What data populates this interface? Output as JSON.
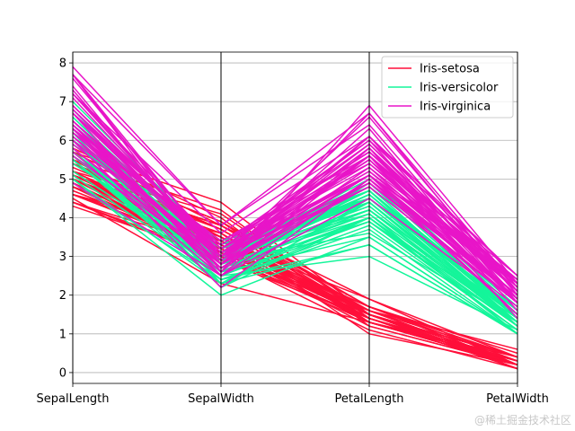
{
  "chart_data": {
    "type": "parallel_coordinates",
    "title": "",
    "columns": [
      "SepalLength",
      "SepalWidth",
      "PetalLength",
      "PetalWidth"
    ],
    "ylim": [
      -0.28,
      8.28
    ],
    "yticks": [
      0,
      1,
      2,
      3,
      4,
      5,
      6,
      7,
      8
    ],
    "grid": true,
    "legend_position": "top-right",
    "series": [
      {
        "name": "Iris-setosa",
        "color": "#ff0f3a",
        "rows": [
          [
            5.1,
            3.5,
            1.4,
            0.2
          ],
          [
            4.9,
            3.0,
            1.4,
            0.2
          ],
          [
            4.7,
            3.2,
            1.3,
            0.2
          ],
          [
            4.6,
            3.1,
            1.5,
            0.2
          ],
          [
            5.0,
            3.6,
            1.4,
            0.2
          ],
          [
            5.4,
            3.9,
            1.7,
            0.4
          ],
          [
            4.6,
            3.4,
            1.4,
            0.3
          ],
          [
            5.0,
            3.4,
            1.5,
            0.2
          ],
          [
            4.4,
            2.9,
            1.4,
            0.2
          ],
          [
            4.9,
            3.1,
            1.5,
            0.1
          ],
          [
            5.4,
            3.7,
            1.5,
            0.2
          ],
          [
            4.8,
            3.4,
            1.6,
            0.2
          ],
          [
            4.8,
            3.0,
            1.4,
            0.1
          ],
          [
            4.3,
            3.0,
            1.1,
            0.1
          ],
          [
            5.8,
            4.0,
            1.2,
            0.2
          ],
          [
            5.7,
            4.4,
            1.5,
            0.4
          ],
          [
            5.4,
            3.9,
            1.3,
            0.4
          ],
          [
            5.1,
            3.5,
            1.4,
            0.3
          ],
          [
            5.7,
            3.8,
            1.7,
            0.3
          ],
          [
            5.1,
            3.8,
            1.5,
            0.3
          ],
          [
            5.4,
            3.4,
            1.7,
            0.2
          ],
          [
            5.1,
            3.7,
            1.5,
            0.4
          ],
          [
            4.6,
            3.6,
            1.0,
            0.2
          ],
          [
            5.1,
            3.3,
            1.7,
            0.5
          ],
          [
            4.8,
            3.4,
            1.9,
            0.2
          ],
          [
            5.0,
            3.0,
            1.6,
            0.2
          ],
          [
            5.0,
            3.4,
            1.6,
            0.4
          ],
          [
            5.2,
            3.5,
            1.5,
            0.2
          ],
          [
            5.2,
            3.4,
            1.4,
            0.2
          ],
          [
            4.7,
            3.2,
            1.6,
            0.2
          ],
          [
            4.8,
            3.1,
            1.6,
            0.2
          ],
          [
            5.4,
            3.4,
            1.5,
            0.4
          ],
          [
            5.2,
            4.1,
            1.5,
            0.1
          ],
          [
            5.5,
            4.2,
            1.4,
            0.2
          ],
          [
            4.9,
            3.1,
            1.5,
            0.1
          ],
          [
            5.0,
            3.2,
            1.2,
            0.2
          ],
          [
            5.5,
            3.5,
            1.3,
            0.2
          ],
          [
            4.9,
            3.1,
            1.5,
            0.1
          ],
          [
            4.4,
            3.0,
            1.3,
            0.2
          ],
          [
            5.1,
            3.4,
            1.5,
            0.2
          ],
          [
            5.0,
            3.5,
            1.3,
            0.3
          ],
          [
            4.5,
            2.3,
            1.3,
            0.3
          ],
          [
            4.4,
            3.2,
            1.3,
            0.2
          ],
          [
            5.0,
            3.5,
            1.6,
            0.6
          ],
          [
            5.1,
            3.8,
            1.9,
            0.4
          ],
          [
            4.8,
            3.0,
            1.4,
            0.3
          ],
          [
            5.1,
            3.8,
            1.6,
            0.2
          ],
          [
            4.6,
            3.2,
            1.4,
            0.2
          ],
          [
            5.3,
            3.7,
            1.5,
            0.2
          ],
          [
            5.0,
            3.3,
            1.4,
            0.2
          ]
        ]
      },
      {
        "name": "Iris-versicolor",
        "color": "#14f59a",
        "rows": [
          [
            7.0,
            3.2,
            4.7,
            1.4
          ],
          [
            6.4,
            3.2,
            4.5,
            1.5
          ],
          [
            6.9,
            3.1,
            4.9,
            1.5
          ],
          [
            5.5,
            2.3,
            4.0,
            1.3
          ],
          [
            6.5,
            2.8,
            4.6,
            1.5
          ],
          [
            5.7,
            2.8,
            4.5,
            1.3
          ],
          [
            6.3,
            3.3,
            4.7,
            1.6
          ],
          [
            4.9,
            2.4,
            3.3,
            1.0
          ],
          [
            6.6,
            2.9,
            4.6,
            1.3
          ],
          [
            5.2,
            2.7,
            3.9,
            1.4
          ],
          [
            5.0,
            2.0,
            3.5,
            1.0
          ],
          [
            5.9,
            3.0,
            4.2,
            1.5
          ],
          [
            6.0,
            2.2,
            4.0,
            1.0
          ],
          [
            6.1,
            2.9,
            4.7,
            1.4
          ],
          [
            5.6,
            2.9,
            3.6,
            1.3
          ],
          [
            6.7,
            3.1,
            4.4,
            1.4
          ],
          [
            5.6,
            3.0,
            4.5,
            1.5
          ],
          [
            5.8,
            2.7,
            4.1,
            1.0
          ],
          [
            6.2,
            2.2,
            4.5,
            1.5
          ],
          [
            5.6,
            2.5,
            3.9,
            1.1
          ],
          [
            5.9,
            3.2,
            4.8,
            1.8
          ],
          [
            6.1,
            2.8,
            4.0,
            1.3
          ],
          [
            6.3,
            2.5,
            4.9,
            1.5
          ],
          [
            6.1,
            2.8,
            4.7,
            1.2
          ],
          [
            6.4,
            2.9,
            4.3,
            1.3
          ],
          [
            6.6,
            3.0,
            4.4,
            1.4
          ],
          [
            6.8,
            2.8,
            4.8,
            1.4
          ],
          [
            6.7,
            3.0,
            5.0,
            1.7
          ],
          [
            6.0,
            2.9,
            4.5,
            1.5
          ],
          [
            5.7,
            2.6,
            3.5,
            1.0
          ],
          [
            5.5,
            2.4,
            3.8,
            1.1
          ],
          [
            5.5,
            2.4,
            3.7,
            1.0
          ],
          [
            5.8,
            2.7,
            3.9,
            1.2
          ],
          [
            6.0,
            2.7,
            5.1,
            1.6
          ],
          [
            5.4,
            3.0,
            4.5,
            1.5
          ],
          [
            6.0,
            3.4,
            4.5,
            1.6
          ],
          [
            6.7,
            3.1,
            4.7,
            1.5
          ],
          [
            6.3,
            2.3,
            4.4,
            1.3
          ],
          [
            5.6,
            3.0,
            4.1,
            1.3
          ],
          [
            5.5,
            2.5,
            4.0,
            1.3
          ],
          [
            5.5,
            2.6,
            4.4,
            1.2
          ],
          [
            6.1,
            3.0,
            4.6,
            1.4
          ],
          [
            5.8,
            2.6,
            4.0,
            1.2
          ],
          [
            5.0,
            2.3,
            3.3,
            1.0
          ],
          [
            5.6,
            2.7,
            4.2,
            1.3
          ],
          [
            5.7,
            3.0,
            4.2,
            1.2
          ],
          [
            5.7,
            2.9,
            4.2,
            1.3
          ],
          [
            6.2,
            2.9,
            4.3,
            1.3
          ],
          [
            5.1,
            2.5,
            3.0,
            1.1
          ],
          [
            5.7,
            2.8,
            4.1,
            1.3
          ]
        ]
      },
      {
        "name": "Iris-virginica",
        "color": "#e815c8",
        "rows": [
          [
            6.3,
            3.3,
            6.0,
            2.5
          ],
          [
            5.8,
            2.7,
            5.1,
            1.9
          ],
          [
            7.1,
            3.0,
            5.9,
            2.1
          ],
          [
            6.3,
            2.9,
            5.6,
            1.8
          ],
          [
            6.5,
            3.0,
            5.8,
            2.2
          ],
          [
            7.6,
            3.0,
            6.6,
            2.1
          ],
          [
            4.9,
            2.5,
            4.5,
            1.7
          ],
          [
            7.3,
            2.9,
            6.3,
            1.8
          ],
          [
            6.7,
            2.5,
            5.8,
            1.8
          ],
          [
            7.2,
            3.6,
            6.1,
            2.5
          ],
          [
            6.5,
            3.2,
            5.1,
            2.0
          ],
          [
            6.4,
            2.7,
            5.3,
            1.9
          ],
          [
            6.8,
            3.0,
            5.5,
            2.1
          ],
          [
            5.7,
            2.5,
            5.0,
            2.0
          ],
          [
            5.8,
            2.8,
            5.1,
            2.4
          ],
          [
            6.4,
            3.2,
            5.3,
            2.3
          ],
          [
            6.5,
            3.0,
            5.5,
            1.8
          ],
          [
            7.7,
            3.8,
            6.7,
            2.2
          ],
          [
            7.7,
            2.6,
            6.9,
            2.3
          ],
          [
            6.0,
            2.2,
            5.0,
            1.5
          ],
          [
            6.9,
            3.2,
            5.7,
            2.3
          ],
          [
            5.6,
            2.8,
            4.9,
            2.0
          ],
          [
            7.7,
            2.8,
            6.7,
            2.0
          ],
          [
            6.3,
            2.7,
            4.9,
            1.8
          ],
          [
            6.7,
            3.3,
            5.7,
            2.1
          ],
          [
            7.2,
            3.2,
            6.0,
            1.8
          ],
          [
            6.2,
            2.8,
            4.8,
            1.8
          ],
          [
            6.1,
            3.0,
            4.9,
            1.8
          ],
          [
            6.4,
            2.8,
            5.6,
            2.1
          ],
          [
            7.2,
            3.0,
            5.8,
            1.6
          ],
          [
            7.4,
            2.8,
            6.1,
            1.9
          ],
          [
            7.9,
            3.8,
            6.4,
            2.0
          ],
          [
            6.4,
            2.8,
            5.6,
            2.2
          ],
          [
            6.3,
            2.8,
            5.1,
            1.5
          ],
          [
            6.1,
            2.6,
            5.6,
            1.4
          ],
          [
            7.7,
            3.0,
            6.1,
            2.3
          ],
          [
            6.3,
            3.4,
            5.6,
            2.4
          ],
          [
            6.4,
            3.1,
            5.5,
            1.8
          ],
          [
            6.0,
            3.0,
            4.8,
            1.8
          ],
          [
            6.9,
            3.1,
            5.4,
            2.1
          ],
          [
            6.7,
            3.1,
            5.6,
            2.4
          ],
          [
            6.9,
            3.1,
            5.1,
            2.3
          ],
          [
            5.8,
            2.7,
            5.1,
            1.9
          ],
          [
            6.8,
            3.2,
            5.9,
            2.3
          ],
          [
            6.7,
            3.3,
            5.7,
            2.5
          ],
          [
            6.7,
            3.0,
            5.2,
            2.3
          ],
          [
            6.3,
            2.5,
            5.0,
            1.9
          ],
          [
            6.5,
            3.0,
            5.2,
            2.0
          ],
          [
            6.2,
            3.4,
            5.4,
            2.3
          ],
          [
            5.9,
            3.0,
            5.1,
            1.8
          ]
        ]
      }
    ]
  },
  "watermark": "@稀土掘金技术社区"
}
